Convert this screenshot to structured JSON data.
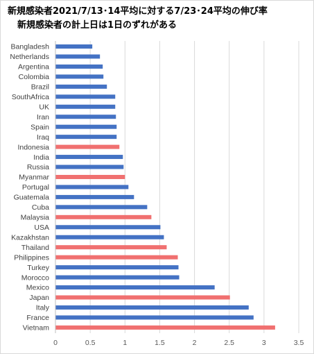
{
  "chart_data": {
    "type": "bar",
    "orientation": "horizontal",
    "title": "新規感染者2021/7/13･14平均に対する7/23･24平均の伸び率",
    "subtitle": "新規感染者の計上日は1日のずれがある",
    "categories": [
      "Bangladesh",
      "Netherlands",
      "Argentina",
      "Colombia",
      "Brazil",
      "SouthAfrica",
      "UK",
      "Iran",
      "Spain",
      "Iraq",
      "Indonesia",
      "India",
      "Russia",
      "Myanmar",
      "Portugal",
      "Guatemala",
      "Cuba",
      "Malaysia",
      "USA",
      "Kazakhstan",
      "Thailand",
      "Philippines",
      "Turkey",
      "Morocco",
      "Mexico",
      "Japan",
      "Italy",
      "France",
      "Vietnam"
    ],
    "values": [
      0.53,
      0.64,
      0.68,
      0.69,
      0.74,
      0.86,
      0.86,
      0.87,
      0.88,
      0.88,
      0.92,
      0.97,
      0.98,
      1.0,
      1.05,
      1.13,
      1.32,
      1.38,
      1.51,
      1.56,
      1.6,
      1.76,
      1.77,
      1.78,
      2.29,
      2.51,
      2.78,
      2.85,
      3.16
    ],
    "highlighted": [
      "Indonesia",
      "Myanmar",
      "Malaysia",
      "Thailand",
      "Philippines",
      "Japan",
      "Vietnam"
    ],
    "colors": {
      "default": "#4472c4",
      "highlight": "#f07070",
      "grid": "#d9d9d9"
    },
    "xlim": [
      0,
      3.5
    ],
    "xticks": [
      "0",
      "0.5",
      "1",
      "1.5",
      "2",
      "2.5",
      "3",
      "3.5"
    ],
    "xlabel": "",
    "ylabel": "",
    "grid": "vertical",
    "legend": "none"
  }
}
